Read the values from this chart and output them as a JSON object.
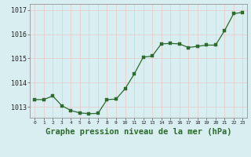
{
  "x": [
    0,
    1,
    2,
    3,
    4,
    5,
    6,
    7,
    8,
    9,
    10,
    11,
    12,
    13,
    14,
    15,
    16,
    17,
    18,
    19,
    20,
    21,
    22,
    23
  ],
  "y": [
    1013.3,
    1013.3,
    1013.45,
    1013.05,
    1012.85,
    1012.75,
    1012.72,
    1012.73,
    1013.3,
    1013.32,
    1013.75,
    1014.35,
    1015.05,
    1015.1,
    1015.6,
    1015.62,
    1015.6,
    1015.45,
    1015.5,
    1015.55,
    1015.55,
    1016.15,
    1016.85,
    1016.9
  ],
  "line_color": "#2d6a2d",
  "marker_color": "#2d6a2d",
  "bg_color": "#d8eef0",
  "grid_color_v": "#e8c8c8",
  "grid_color_h": "#e8c8c8",
  "title": "Graphe pression niveau de la mer (hPa)",
  "ylim_min": 1012.55,
  "ylim_max": 1017.25,
  "yticks": [
    1013,
    1014,
    1015,
    1016,
    1017
  ],
  "ytick_labels": [
    "1013",
    "1014",
    "1015",
    "1016",
    "1017"
  ],
  "xtick_labels": [
    "0",
    "1",
    "2",
    "3",
    "4",
    "5",
    "6",
    "7",
    "8",
    "9",
    "10",
    "11",
    "12",
    "13",
    "14",
    "15",
    "16",
    "17",
    "18",
    "19",
    "20",
    "21",
    "22",
    "23"
  ],
  "title_fontsize": 7.5,
  "ytick_fontsize": 6,
  "xtick_fontsize": 4.5
}
